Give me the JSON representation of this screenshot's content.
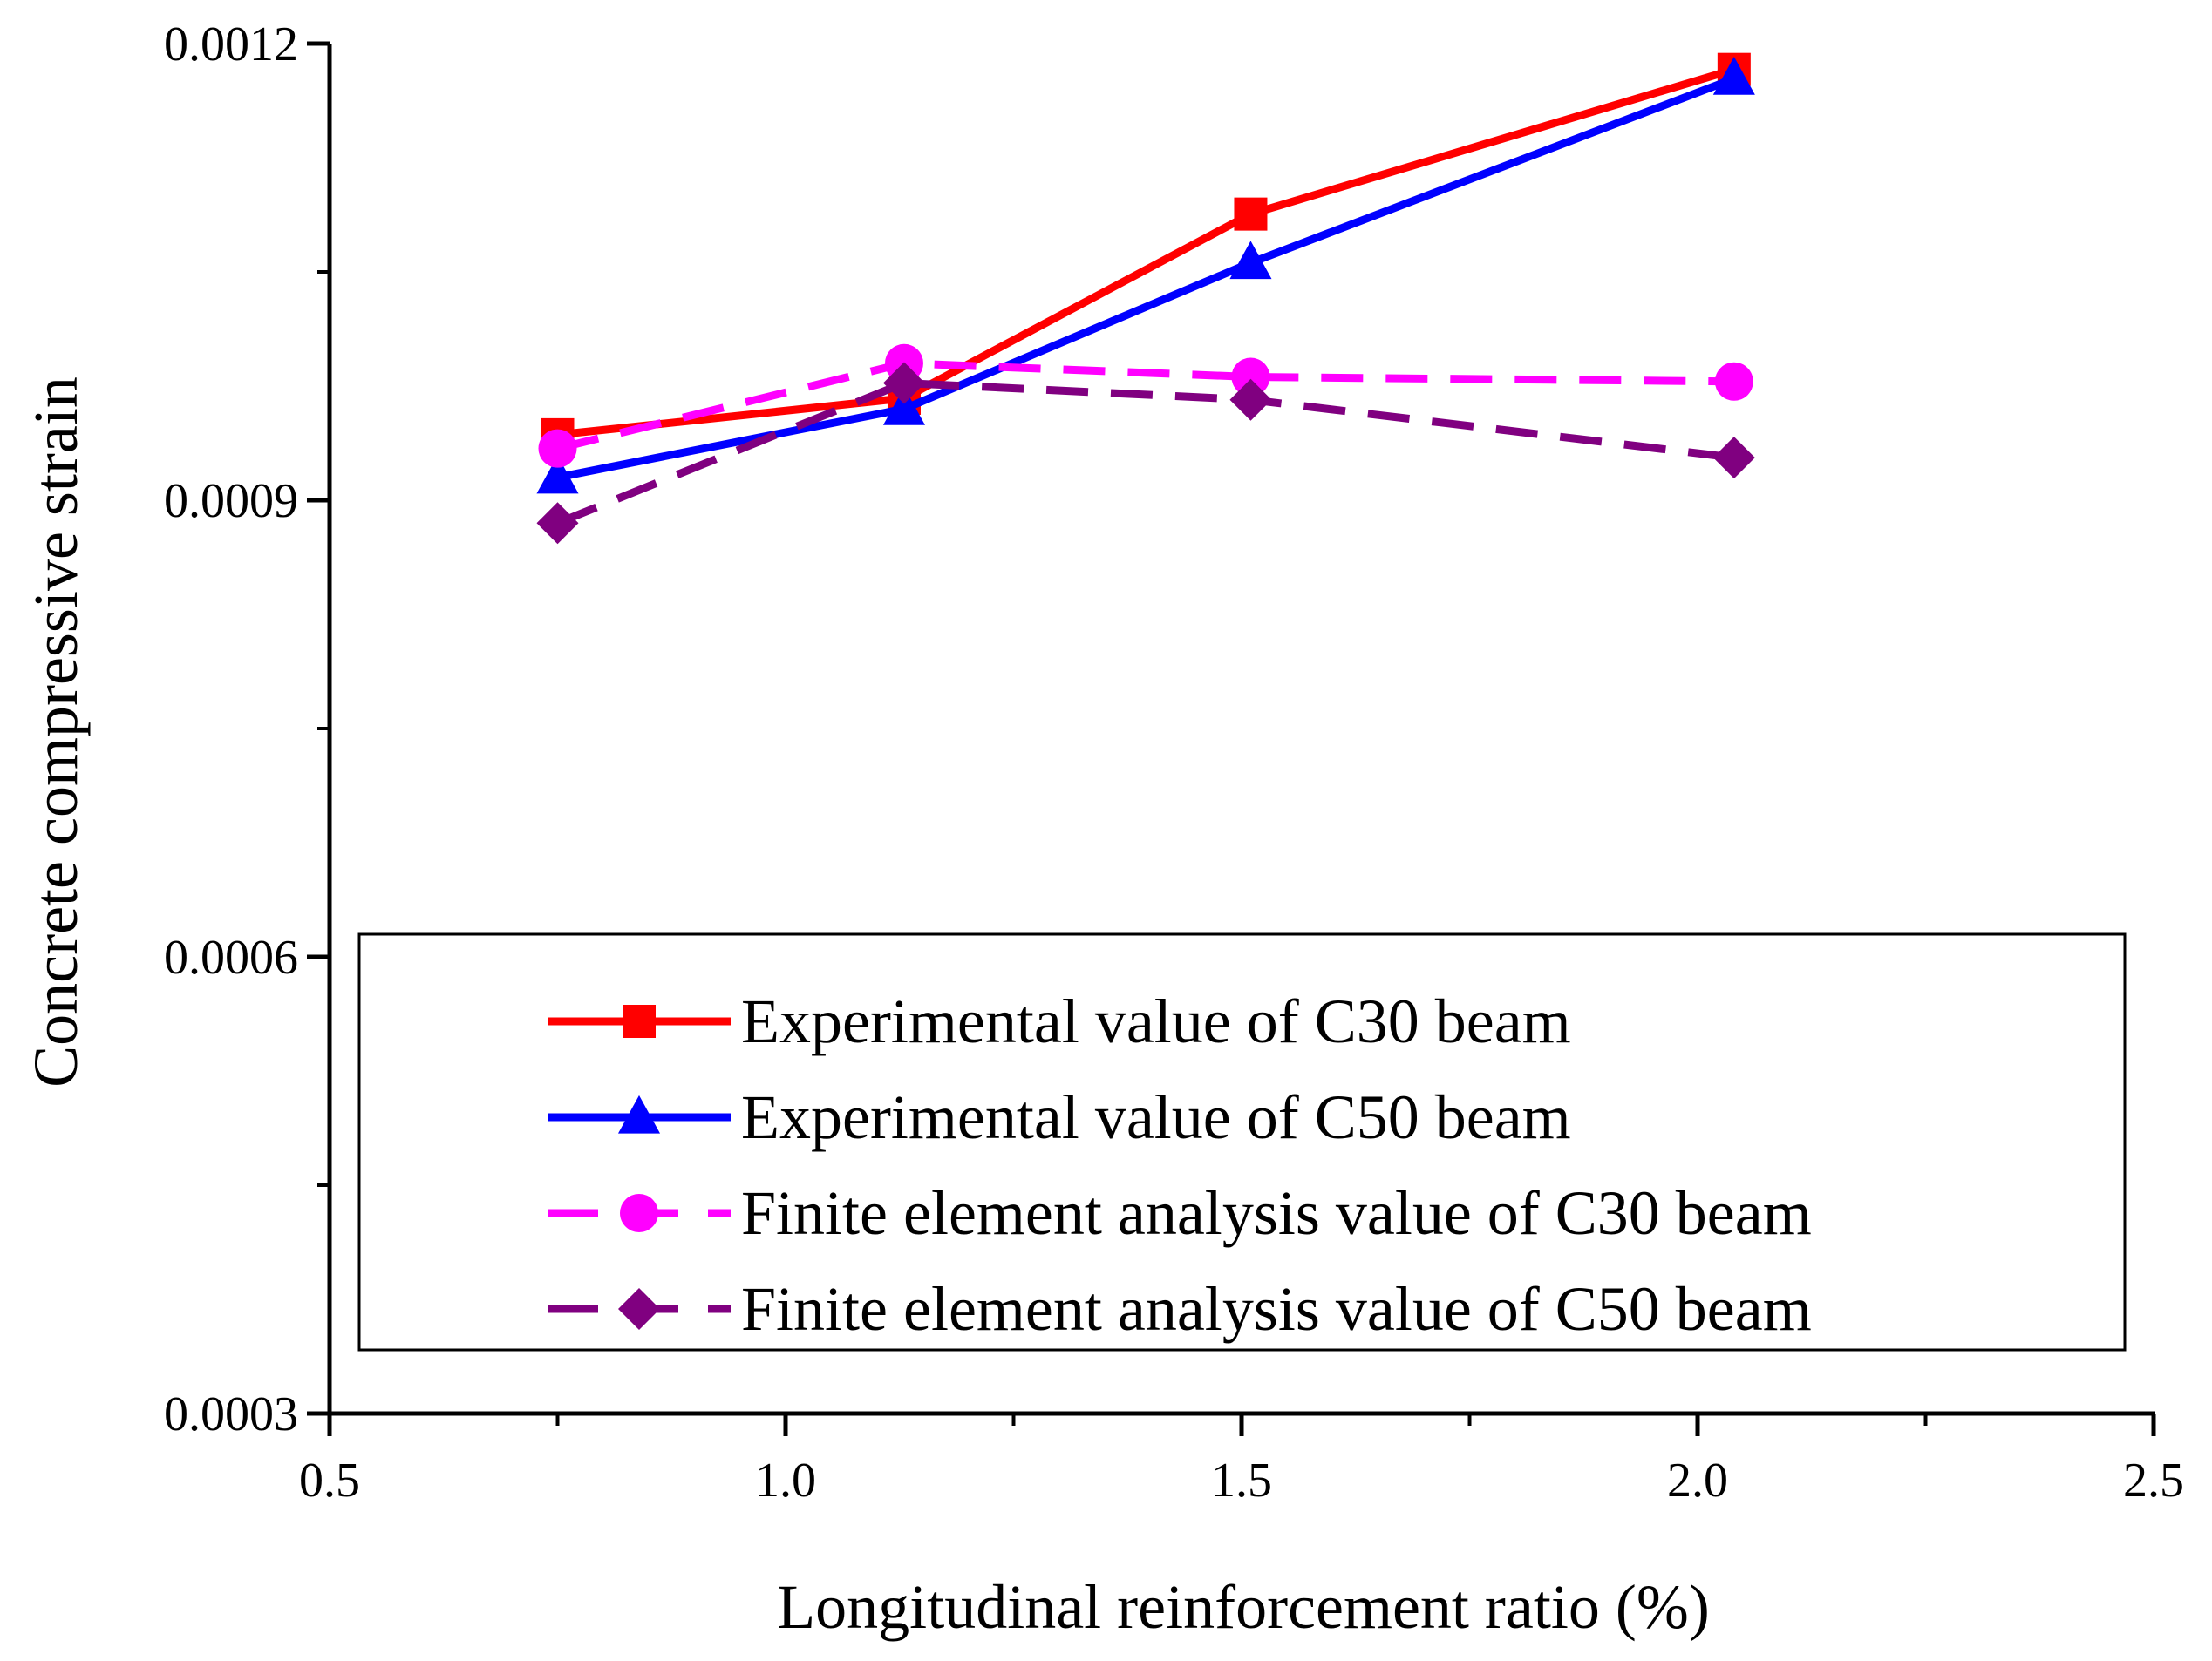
{
  "chart_data": {
    "type": "line",
    "title": "",
    "xlabel": "Longitudinal reinforcement ratio (%)",
    "ylabel": "Concrete compressive strain",
    "xlim": [
      0.5,
      2.5
    ],
    "ylim": [
      0.0003,
      0.0012
    ],
    "x_ticks": [
      0.5,
      1.0,
      1.5,
      2.0,
      2.5
    ],
    "x_tick_labels": [
      "0.5",
      "1.0",
      "1.5",
      "2.0",
      "2.5"
    ],
    "y_ticks": [
      0.0003,
      0.0006,
      0.0009,
      0.0012
    ],
    "y_tick_labels": [
      "0.0003",
      "0.0006",
      "0.0009",
      "0.0012"
    ],
    "grid": false,
    "legend_position": "lower-right",
    "series": [
      {
        "name": "Experimental value of C30 beam",
        "x": [
          0.75,
          1.13,
          1.51,
          2.04
        ],
        "values": [
          0.000943,
          0.000967,
          0.001088,
          0.001183
        ],
        "color": "#ff0000",
        "dash": "solid",
        "marker": "square"
      },
      {
        "name": "Experimental value of C50 beam",
        "x": [
          0.75,
          1.13,
          1.51,
          2.04
        ],
        "values": [
          0.000915,
          0.00096,
          0.001056,
          0.001177
        ],
        "color": "#0000ff",
        "dash": "solid",
        "marker": "triangle"
      },
      {
        "name": "Finite element analysis value of C30 beam",
        "x": [
          0.75,
          1.13,
          1.51,
          2.04
        ],
        "values": [
          0.000934,
          0.00099,
          0.000981,
          0.000978
        ],
        "color": "#ff00ff",
        "dash": "dashed",
        "marker": "circle"
      },
      {
        "name": "Finite element analysis value of C50 beam",
        "x": [
          0.75,
          1.13,
          1.51,
          2.04
        ],
        "values": [
          0.000885,
          0.000977,
          0.000966,
          0.000928
        ],
        "color": "#800080",
        "dash": "dashed",
        "marker": "diamond"
      }
    ]
  }
}
